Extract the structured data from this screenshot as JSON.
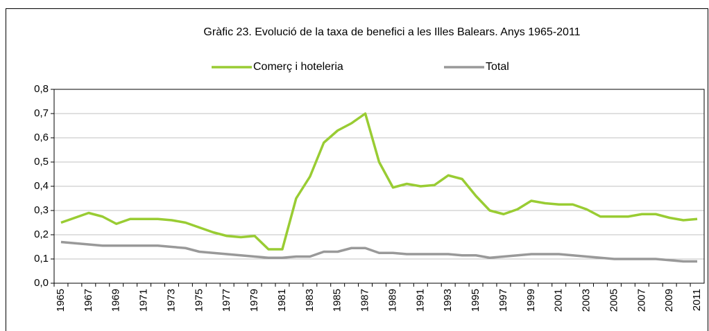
{
  "chart_data": {
    "type": "line",
    "title": "Gràfic 23. Evolució de la taxa de benefici a les Illes Balears. Anys 1965-2011",
    "categories": [
      "1965",
      null,
      "1967",
      null,
      "1969",
      null,
      "1971",
      null,
      "1973",
      null,
      "1975",
      null,
      "1977",
      null,
      "1979",
      null,
      "1981",
      null,
      "1983",
      null,
      "1985",
      null,
      "1987",
      null,
      "1989",
      null,
      "1991",
      null,
      "1993",
      null,
      "1995",
      null,
      "1997",
      null,
      "1999",
      null,
      "2001",
      null,
      "2003",
      null,
      "2005",
      null,
      "2007",
      null,
      "2009",
      null,
      "2011"
    ],
    "series": [
      {
        "name": "Comerç i hoteleria",
        "color": "#99cc33",
        "values": [
          0.25,
          0.27,
          0.29,
          0.275,
          0.245,
          0.265,
          0.265,
          0.265,
          0.26,
          0.25,
          0.23,
          0.21,
          0.195,
          0.19,
          0.195,
          0.14,
          0.14,
          0.35,
          0.44,
          0.58,
          0.63,
          0.66,
          0.7,
          0.5,
          0.395,
          0.41,
          0.4,
          0.405,
          0.445,
          0.43,
          0.36,
          0.3,
          0.285,
          0.305,
          0.34,
          0.33,
          0.325,
          0.325,
          0.305,
          0.275,
          0.275,
          0.275,
          0.285,
          0.285,
          0.27,
          0.26,
          0.265
        ]
      },
      {
        "name": "Total",
        "color": "#999999",
        "values": [
          0.17,
          0.165,
          0.16,
          0.155,
          0.155,
          0.155,
          0.155,
          0.155,
          0.15,
          0.145,
          0.13,
          0.125,
          0.12,
          0.115,
          0.11,
          0.105,
          0.105,
          0.11,
          0.11,
          0.13,
          0.13,
          0.145,
          0.145,
          0.125,
          0.125,
          0.12,
          0.12,
          0.12,
          0.12,
          0.115,
          0.115,
          0.105,
          0.11,
          0.115,
          0.12,
          0.12,
          0.12,
          0.115,
          0.11,
          0.105,
          0.1,
          0.1,
          0.1,
          0.1,
          0.095,
          0.09,
          0.09
        ]
      }
    ],
    "ylim": [
      0,
      0.8
    ],
    "yticks": [
      {
        "value": 0,
        "label": "0,0"
      },
      {
        "value": 0.1,
        "label": "0,1"
      },
      {
        "value": 0.2,
        "label": "0,2"
      },
      {
        "value": 0.3,
        "label": "0,3"
      },
      {
        "value": 0.4,
        "label": "0,4"
      },
      {
        "value": 0.5,
        "label": "0,5"
      },
      {
        "value": 0.6,
        "label": "0,6"
      },
      {
        "value": 0.7,
        "label": "0,7"
      },
      {
        "value": 0.8,
        "label": "0,8"
      }
    ],
    "grid": true
  }
}
